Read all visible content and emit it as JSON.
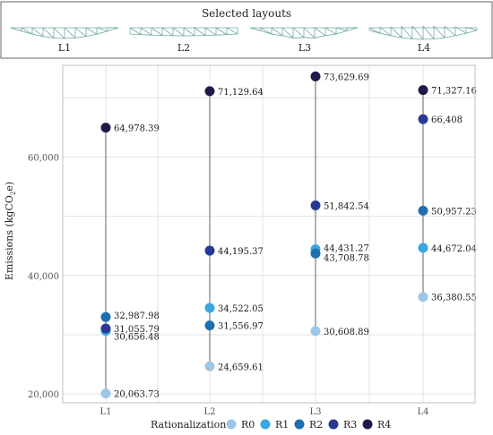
{
  "header": {
    "title": "Selected layouts",
    "layout_labels": [
      "L1",
      "L2",
      "L3",
      "L4"
    ]
  },
  "chart_data": {
    "type": "scatter",
    "categories": [
      "L1",
      "L2",
      "L3",
      "L4"
    ],
    "ylabel_parts": [
      "Emissions (kgCO",
      "2",
      "e)"
    ],
    "ylim": [
      18500,
      75500
    ],
    "yticks": [
      20000,
      40000,
      60000
    ],
    "ytick_labels": [
      "20,000",
      "40,000",
      "60,000"
    ],
    "grid": true,
    "legend_title": "Rationalization",
    "legend_position": "bottom",
    "series": [
      {
        "name": "R0",
        "color": "#9cc7e8",
        "values": [
          20063.73,
          24659.61,
          30608.89,
          36380.55
        ],
        "labels": [
          "20,063.73",
          "24,659.61",
          "30,608.89",
          "36,380.55"
        ]
      },
      {
        "name": "R1",
        "color": "#3aa7e0",
        "values": [
          30656.48,
          34522.05,
          44431.27,
          44672.04
        ],
        "labels": [
          "30,656.48",
          "34,522.05",
          "44,431.27",
          "44,672.04"
        ]
      },
      {
        "name": "R2",
        "color": "#1f6fb0",
        "values": [
          32987.98,
          31556.97,
          43708.78,
          50957.23
        ],
        "labels": [
          "32,987.98",
          "31,556.97",
          "43,708.78",
          "50,957.23"
        ]
      },
      {
        "name": "R3",
        "color": "#283a93",
        "values": [
          31055.79,
          44195.37,
          51842.54,
          66408
        ],
        "labels": [
          "31,055.79",
          "44,195.37",
          "51,842.54",
          "66,408"
        ]
      },
      {
        "name": "R4",
        "color": "#1e1b4b",
        "values": [
          64978.39,
          71129.64,
          73629.69,
          71327.16
        ],
        "labels": [
          "64,978.39",
          "71,129.64",
          "73,629.69",
          "71,327.16"
        ]
      }
    ]
  }
}
